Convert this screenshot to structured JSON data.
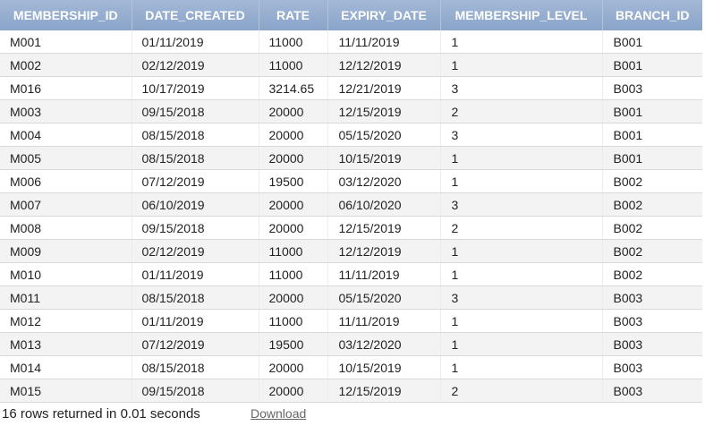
{
  "table": {
    "columns": [
      "MEMBERSHIP_ID",
      "DATE_CREATED",
      "RATE",
      "EXPIRY_DATE",
      "MEMBERSHIP_LEVEL",
      "BRANCH_ID"
    ],
    "rows": [
      [
        "M001",
        "01/11/2019",
        "11000",
        "11/11/2019",
        "1",
        "B001"
      ],
      [
        "M002",
        "02/12/2019",
        "11000",
        "12/12/2019",
        "1",
        "B001"
      ],
      [
        "M016",
        "10/17/2019",
        "3214.65",
        "12/21/2019",
        "3",
        "B003"
      ],
      [
        "M003",
        "09/15/2018",
        "20000",
        "12/15/2019",
        "2",
        "B001"
      ],
      [
        "M004",
        "08/15/2018",
        "20000",
        "05/15/2020",
        "3",
        "B001"
      ],
      [
        "M005",
        "08/15/2018",
        "20000",
        "10/15/2019",
        "1",
        "B001"
      ],
      [
        "M006",
        "07/12/2019",
        "19500",
        "03/12/2020",
        "1",
        "B002"
      ],
      [
        "M007",
        "06/10/2019",
        "20000",
        "06/10/2020",
        "3",
        "B002"
      ],
      [
        "M008",
        "09/15/2018",
        "20000",
        "12/15/2019",
        "2",
        "B002"
      ],
      [
        "M009",
        "02/12/2019",
        "11000",
        "12/12/2019",
        "1",
        "B002"
      ],
      [
        "M010",
        "01/11/2019",
        "11000",
        "11/11/2019",
        "1",
        "B002"
      ],
      [
        "M011",
        "08/15/2018",
        "20000",
        "05/15/2020",
        "3",
        "B003"
      ],
      [
        "M012",
        "01/11/2019",
        "11000",
        "11/11/2019",
        "1",
        "B003"
      ],
      [
        "M013",
        "07/12/2019",
        "19500",
        "03/12/2020",
        "1",
        "B003"
      ],
      [
        "M014",
        "08/15/2018",
        "20000",
        "10/15/2019",
        "1",
        "B003"
      ],
      [
        "M015",
        "09/15/2018",
        "20000",
        "12/15/2019",
        "2",
        "B003"
      ]
    ]
  },
  "footer": {
    "status": "16 rows returned in 0.01 seconds",
    "download_label": "Download"
  },
  "colors": {
    "header_bg": "#8aa4c9",
    "header_text": "#ffffff",
    "row_alt_bg": "#f3f3f3",
    "link_color": "#666666"
  }
}
